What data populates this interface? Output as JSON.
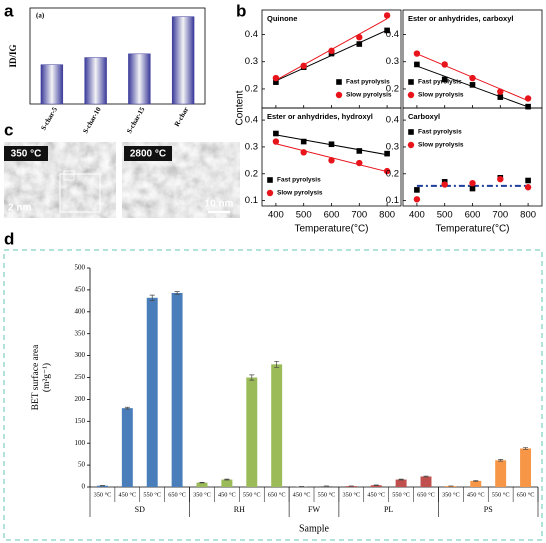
{
  "chart_data": [
    {
      "panel": "a",
      "type": "bar",
      "tag": "(a)",
      "ylabel": "ID/IG",
      "categories": [
        "S-char-5",
        "S-char-10",
        "S-char-15",
        "R-char"
      ],
      "values": [
        1.27,
        1.5,
        1.62,
        2.82
      ],
      "color": "#3a3a9a",
      "ylim": [
        0,
        3.1
      ]
    },
    {
      "panel": "b",
      "type": "scatter",
      "title": "Quinone",
      "ylabel": "Content",
      "legend": "lower right",
      "x": [
        400,
        500,
        600,
        700,
        800
      ],
      "series": [
        {
          "name": "Fast pyrolysis",
          "color": "#000000",
          "marker": "square",
          "values": [
            0.225,
            0.28,
            0.33,
            0.365,
            0.415
          ]
        },
        {
          "name": "Slow pyrolysis",
          "color": "#e8141c",
          "marker": "circle",
          "values": [
            0.24,
            0.285,
            0.34,
            0.39,
            0.47
          ]
        }
      ],
      "xlim": [
        350,
        850
      ],
      "xticks": [
        400,
        500,
        600,
        700,
        800
      ],
      "ylim": [
        0.13,
        0.49
      ],
      "yticks": [
        0.2,
        0.3,
        0.4
      ]
    },
    {
      "type": "scatter",
      "title": "Ester or anhydrides, carboxyl",
      "legend": "lower left",
      "x": [
        400,
        500,
        600,
        700,
        800
      ],
      "series": [
        {
          "name": "Fast pyrolysis",
          "color": "#000000",
          "marker": "square",
          "values": [
            0.29,
            0.235,
            0.215,
            0.17,
            0.135
          ]
        },
        {
          "name": "Slow pyrolysis",
          "color": "#e8141c",
          "marker": "circle",
          "values": [
            0.33,
            0.29,
            0.24,
            0.19,
            0.165
          ]
        }
      ],
      "xlim": [
        350,
        850
      ],
      "xticks": [
        400,
        500,
        600,
        700,
        800
      ],
      "ylim": [
        0.13,
        0.49
      ],
      "yticks": [
        0.2,
        0.3,
        0.4
      ]
    },
    {
      "type": "scatter",
      "title": "Ester or anhydrides, hydroxyl",
      "legend": "lower left",
      "xlabel": "Temperature(°C)",
      "x": [
        400,
        500,
        600,
        700,
        800
      ],
      "series": [
        {
          "name": "Fast pyrolysis",
          "color": "#000000",
          "marker": "square",
          "values": [
            0.35,
            0.32,
            0.31,
            0.285,
            0.275
          ]
        },
        {
          "name": "Slow pyrolysis",
          "color": "#e8141c",
          "marker": "circle",
          "values": [
            0.32,
            0.28,
            0.25,
            0.24,
            0.21
          ]
        }
      ],
      "xlim": [
        350,
        850
      ],
      "xticks": [
        400,
        500,
        600,
        700,
        800
      ],
      "ylim": [
        0.08,
        0.445
      ],
      "yticks": [
        0.1,
        0.2,
        0.3,
        0.4
      ]
    },
    {
      "type": "scatter",
      "title": "Carboxyl",
      "legend": "upper left",
      "xlabel": "Temperature(°C)",
      "hline": 0.155,
      "x": [
        400,
        500,
        600,
        700,
        800
      ],
      "series": [
        {
          "name": "Fast pyrolysis",
          "color": "#000000",
          "marker": "square",
          "values": [
            0.14,
            0.17,
            0.145,
            0.185,
            0.175
          ]
        },
        {
          "name": "Slow pyrolysis",
          "color": "#e8141c",
          "marker": "circle",
          "values": [
            0.105,
            0.16,
            0.165,
            0.18,
            0.15
          ]
        }
      ],
      "xlim": [
        350,
        850
      ],
      "xticks": [
        400,
        500,
        600,
        700,
        800
      ],
      "ylim": [
        0.08,
        0.445
      ],
      "yticks": [
        0.1,
        0.2,
        0.3,
        0.4
      ]
    },
    {
      "panel": "d",
      "type": "grouped-bar",
      "ylabel": [
        "BET surface area",
        "(m²g⁻¹)"
      ],
      "xlabel": "Sample",
      "ylim": [
        0,
        500
      ],
      "yticks": [
        0,
        50,
        100,
        150,
        200,
        250,
        300,
        350,
        400,
        450,
        500
      ],
      "groups": [
        {
          "name": "SD",
          "color": "#4a7ebb",
          "categories": [
            "350 °C",
            "450 °C",
            "550 °C",
            "650 °C"
          ],
          "values": [
            3,
            180,
            432,
            443
          ],
          "errors": [
            0.5,
            2,
            6,
            3
          ]
        },
        {
          "name": "RH",
          "color": "#9bbb59",
          "categories": [
            "350 °C",
            "450 °C",
            "550 °C",
            "650 °C"
          ],
          "values": [
            10,
            17,
            250,
            280
          ],
          "errors": [
            0.5,
            1,
            6,
            7
          ]
        },
        {
          "name": "FW",
          "color": "#7f7f7f",
          "categories": [
            "450 °C",
            "550 °C"
          ],
          "values": [
            1,
            2
          ],
          "errors": [
            0.2,
            0.2
          ]
        },
        {
          "name": "PL",
          "color": "#c0504d",
          "categories": [
            "350 °C",
            "450 °C",
            "550 °C",
            "650 °C"
          ],
          "values": [
            2,
            4,
            17,
            24
          ],
          "errors": [
            0.2,
            0.5,
            1,
            1
          ]
        },
        {
          "name": "PS",
          "color": "#f79646",
          "categories": [
            "350 °C",
            "450 °C",
            "550 °C",
            "650 °C"
          ],
          "values": [
            2,
            14,
            61,
            88
          ],
          "errors": [
            0.2,
            1,
            2,
            2
          ]
        }
      ]
    }
  ],
  "image_panel": "c",
  "images": [
    {
      "label": "350 °C",
      "scale": "2 nm"
    },
    {
      "label": "2800 °C",
      "scale": "10 nm"
    }
  ]
}
